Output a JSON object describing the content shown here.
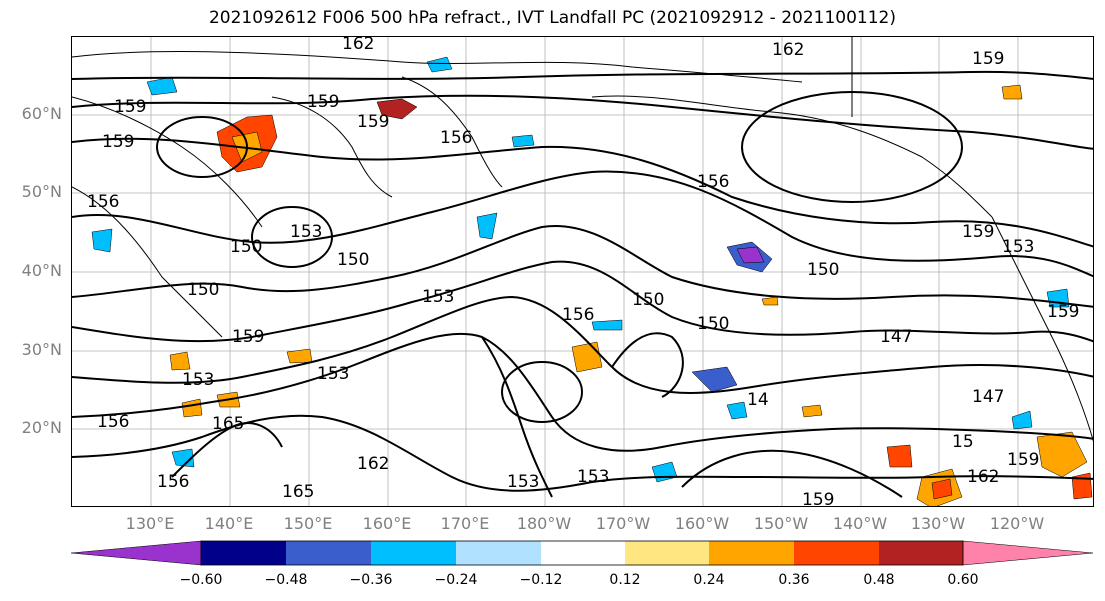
{
  "title": "2021092612 F006 500 hPa refract., IVT Landfall PC (2021092912 - 2021100112)",
  "lat_labels": [
    "60°N",
    "50°N",
    "40°N",
    "30°N",
    "20°N"
  ],
  "lon_labels": [
    "130°E",
    "140°E",
    "150°E",
    "160°E",
    "170°E",
    "180°W",
    "170°W",
    "160°W",
    "150°W",
    "140°W",
    "130°W",
    "120°W"
  ],
  "contour_labels": [
    "162",
    "162",
    "159",
    "159",
    "159",
    "159",
    "156",
    "159",
    "156",
    "156",
    "153",
    "159",
    "153",
    "150",
    "150",
    "153",
    "159",
    "150",
    "150",
    "156",
    "150",
    "150",
    "147",
    "147",
    "159",
    "153",
    "153",
    "165",
    "162",
    "156",
    "165",
    "153",
    "153",
    "14",
    "159",
    "162",
    "159",
    "156",
    "15"
  ],
  "colorbar": {
    "ticks": [
      "−0.60",
      "−0.48",
      "−0.36",
      "−0.24",
      "−0.12",
      "0.12",
      "0.24",
      "0.36",
      "0.48",
      "0.60"
    ],
    "colors": [
      "#9a32cd",
      "#00008b",
      "#3a5fcd",
      "#00bfff",
      "#b0e2ff",
      "#ffffff",
      "#ffe680",
      "#ffa500",
      "#ff4500",
      "#b22222",
      "#ff82ab"
    ]
  },
  "colors": {
    "contour": "#000000",
    "coastline": "#000000",
    "grid": "#808080",
    "axis_label": "#808080"
  }
}
